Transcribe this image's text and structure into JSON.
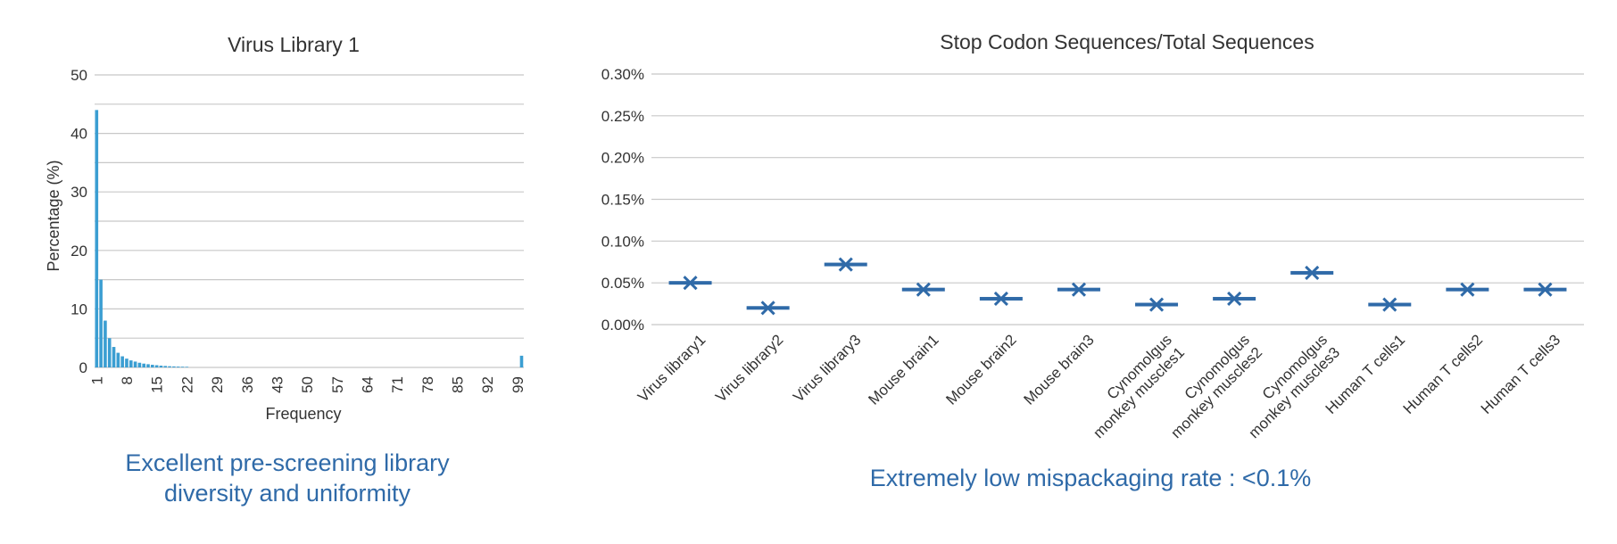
{
  "chart_data": [
    {
      "type": "bar",
      "title": "Virus Library 1",
      "xlabel": "Frequency",
      "ylabel": "Percentage (%)",
      "ylim": [
        0,
        50
      ],
      "yticks": [
        0,
        10,
        20,
        30,
        40,
        50
      ],
      "xlim": [
        1,
        100
      ],
      "xticks": [
        1,
        8,
        15,
        22,
        29,
        36,
        43,
        50,
        57,
        64,
        71,
        78,
        85,
        92,
        99
      ],
      "grid": true,
      "x": [
        1,
        2,
        3,
        4,
        5,
        6,
        7,
        8,
        9,
        10,
        11,
        12,
        13,
        14,
        15,
        16,
        17,
        18,
        19,
        20,
        21,
        22,
        100
      ],
      "values": [
        44,
        15,
        8,
        5,
        3.5,
        2.5,
        1.9,
        1.5,
        1.2,
        1.0,
        0.8,
        0.65,
        0.55,
        0.45,
        0.38,
        0.3,
        0.25,
        0.2,
        0.17,
        0.14,
        0.12,
        0.1,
        2.0
      ],
      "caption": [
        "Excellent pre-screening library",
        "diversity and uniformity"
      ]
    },
    {
      "type": "box",
      "title": "Stop Codon Sequences/Total Sequences",
      "ylim": [
        0,
        0.3
      ],
      "yticks": [
        "0.00%",
        "0.05%",
        "0.10%",
        "0.15%",
        "0.20%",
        "0.25%",
        "0.30%"
      ],
      "grid": true,
      "categories": [
        "Virus library1",
        "Virus library2",
        "Virus library3",
        "Mouse brain1",
        "Mouse brain2",
        "Mouse brain3",
        "Cynomolgus monkey  muscles1",
        "Cynomolgus monkey muscles2",
        "Cynomolgus monkey muscles3",
        "Human T cells1",
        "Human T cells2",
        "Human T cells3"
      ],
      "values": [
        0.05,
        0.02,
        0.072,
        0.042,
        0.031,
        0.042,
        0.024,
        0.031,
        0.062,
        0.024,
        0.042,
        0.042
      ],
      "caption": "Extremely low mispackaging rate : <0.1%"
    }
  ],
  "colors": {
    "bar": "#3b9ed2",
    "marker": "#2f6aa8",
    "caption": "#2f6aa8",
    "grid": "#c8c8c8"
  }
}
